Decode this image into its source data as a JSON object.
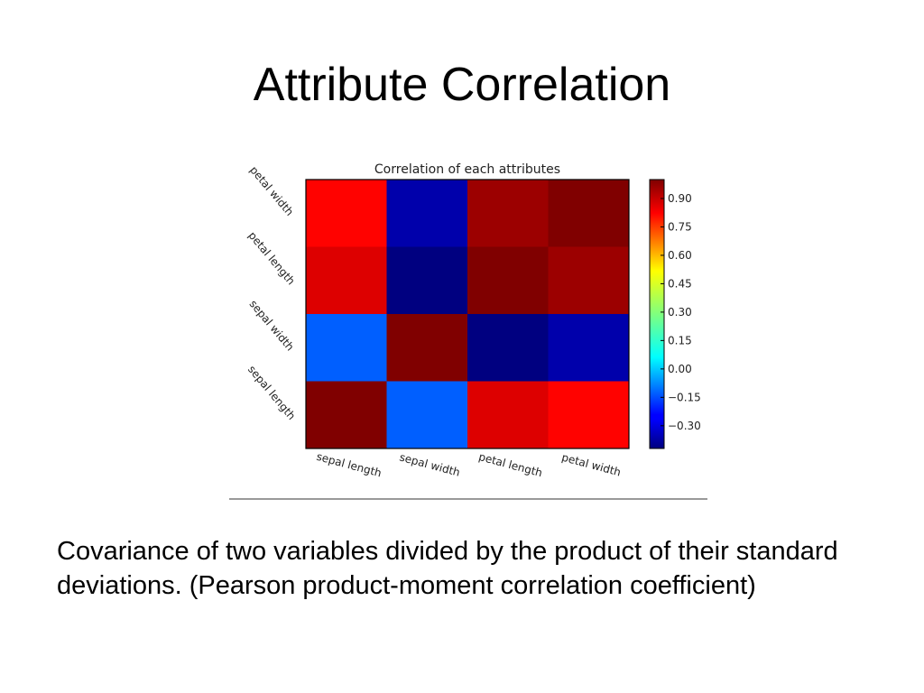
{
  "slide": {
    "title": "Attribute Correlation",
    "caption": "Covariance of two variables divided by the product of their standard deviations. (Pearson product-moment correlation coefficient)"
  },
  "chart_data": {
    "type": "heatmap",
    "title": "Correlation of each attributes",
    "x_labels": [
      "sepal length",
      "sepal width",
      "petal length",
      "petal width"
    ],
    "y_labels_top_to_bottom": [
      "petal width",
      "petal length",
      "sepal width",
      "sepal length"
    ],
    "matrix_top_to_bottom": [
      [
        0.82,
        -0.36,
        0.96,
        1.0
      ],
      [
        0.87,
        -0.42,
        1.0,
        0.96
      ],
      [
        -0.11,
        1.0,
        -0.42,
        -0.36
      ],
      [
        1.0,
        -0.11,
        0.87,
        0.82
      ]
    ],
    "colorbar": {
      "range": [
        -0.42,
        1.0
      ],
      "ticks": [
        0.9,
        0.75,
        0.6,
        0.45,
        0.3,
        0.15,
        0.0,
        -0.15,
        -0.3
      ],
      "tick_labels": [
        "0.90",
        "0.75",
        "0.60",
        "0.45",
        "0.30",
        "0.15",
        "0.00",
        "−0.15",
        "−0.30"
      ],
      "colormap": "jet"
    }
  }
}
